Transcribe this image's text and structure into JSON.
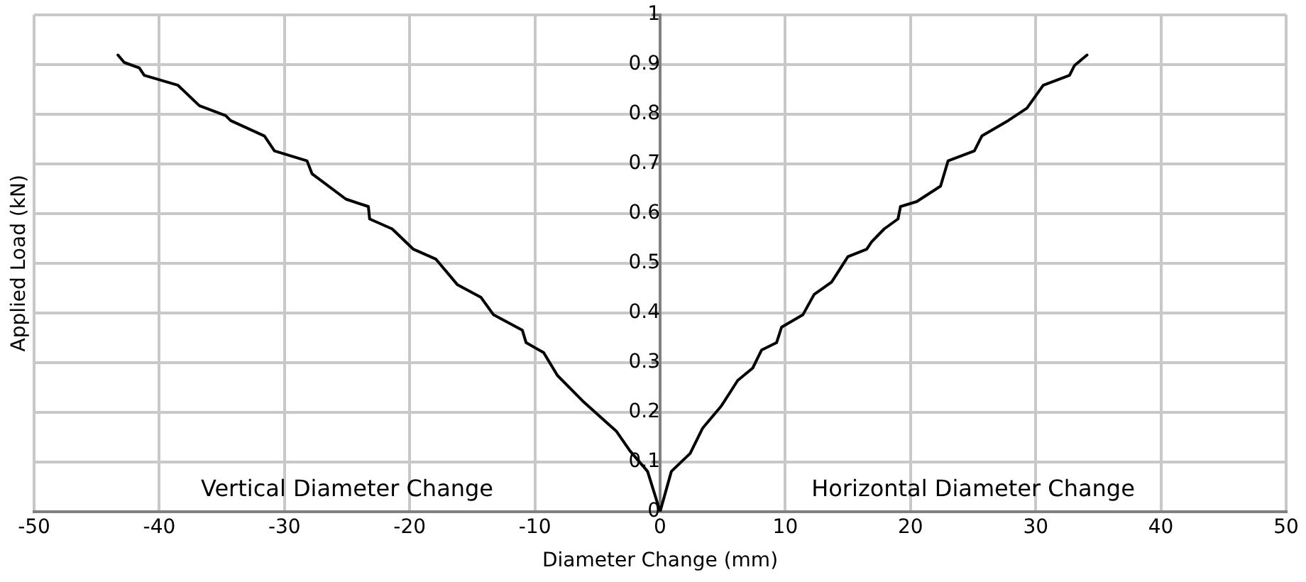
{
  "chart_data": {
    "type": "line",
    "xlabel": "Diameter Change (mm)",
    "ylabel": "Applied Load (kN)",
    "xlim": [
      -50,
      50
    ],
    "xticks": [
      -50,
      -40,
      -30,
      -20,
      -10,
      0,
      10,
      20,
      30,
      40,
      50
    ],
    "ylim": [
      0,
      1
    ],
    "yticks": [
      0,
      0.1,
      0.2,
      0.3,
      0.4,
      0.5,
      0.6,
      0.7,
      0.8,
      0.9,
      1
    ],
    "grid": true,
    "legend": false,
    "marker": "none",
    "line_style": "solid",
    "annotations": [
      "Vertical Diameter Change",
      "Horizontal Diameter Change"
    ],
    "series": [
      {
        "color": "#000000",
        "x": [
          -43.3,
          -42.8,
          -41.6,
          -41.2,
          -38.5,
          -36.8,
          -34.7,
          -34.3,
          -31.6,
          -30.8,
          -28.2,
          -27.8,
          -25.1,
          -23.3,
          -23.2,
          -21.4,
          -19.7,
          -17.9,
          -16.2,
          -14.3,
          -13.3,
          -11.0,
          -10.7,
          -9.3,
          -8.2,
          -6.2,
          -3.5,
          -2.4,
          -1.0,
          0
        ],
        "values": [
          0.919,
          0.904,
          0.893,
          0.878,
          0.858,
          0.817,
          0.797,
          0.787,
          0.756,
          0.726,
          0.706,
          0.68,
          0.629,
          0.614,
          0.589,
          0.569,
          0.528,
          0.508,
          0.457,
          0.431,
          0.396,
          0.365,
          0.34,
          0.32,
          0.274,
          0.223,
          0.162,
          0.122,
          0.081,
          0
        ]
      },
      {
        "color": "#000000",
        "x": [
          0,
          0.9,
          2.4,
          3.4,
          4.9,
          6.2,
          7.4,
          8.1,
          9.3,
          9.7,
          11.4,
          12.3,
          13.7,
          15.0,
          16.5,
          16.9,
          17.9,
          19.0,
          19.2,
          20.5,
          22.4,
          23.0,
          25.1,
          25.7,
          27.8,
          29.3,
          30.6,
          32.7,
          33.1,
          34.1
        ],
        "values": [
          0,
          0.081,
          0.117,
          0.168,
          0.213,
          0.264,
          0.289,
          0.325,
          0.34,
          0.371,
          0.396,
          0.437,
          0.462,
          0.513,
          0.528,
          0.543,
          0.569,
          0.589,
          0.614,
          0.624,
          0.655,
          0.706,
          0.726,
          0.756,
          0.787,
          0.812,
          0.858,
          0.878,
          0.898,
          0.919
        ]
      }
    ]
  }
}
